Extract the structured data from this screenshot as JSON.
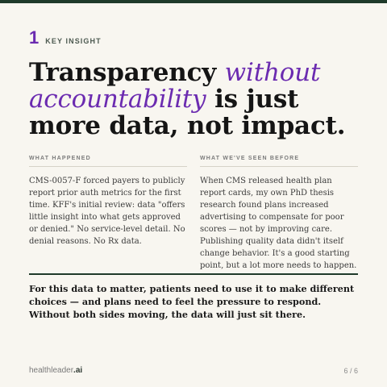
{
  "header": {
    "number": "1",
    "kicker": "KEY INSIGHT"
  },
  "headline": {
    "part1": "Transparency",
    "accent": "without accountability",
    "part2": "is just more data, not impact."
  },
  "columns": [
    {
      "title": "WHAT HAPPENED",
      "body": "CMS-0057-F forced payers to publicly report prior auth metrics for the first time. KFF's initial review: data \"offers little insight into what gets approved or denied.\" No service-level detail. No denial reasons. No Rx data."
    },
    {
      "title": "WHAT WE'VE SEEN BEFORE",
      "body": "When CMS released health plan report cards, my own PhD thesis research found plans increased advertising to compensate for poor scores — not by improving care. Publishing quality data didn't itself change behavior. It's a good starting point, but a lot more needs to happen."
    }
  ],
  "callout": "For this data to matter, patients need to use it to make different choices — and plans need to feel the pressure to respond. Without both sides moving, the data will just sit there.",
  "footer": {
    "brand_name": "healthleader",
    "brand_tld": ".ai",
    "page": "6 / 6"
  },
  "colors": {
    "accent": "#6b2bb0",
    "dark_green": "#1f3a2a",
    "background": "#f8f6f0"
  }
}
